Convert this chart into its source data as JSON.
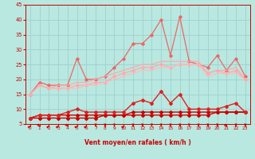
{
  "x": [
    0,
    1,
    2,
    3,
    4,
    5,
    6,
    7,
    8,
    9,
    10,
    11,
    12,
    13,
    14,
    15,
    16,
    17,
    18,
    19,
    20,
    21,
    22,
    23
  ],
  "series": [
    {
      "name": "line1_dark_bottom",
      "y": [
        7,
        7,
        7,
        7,
        7,
        7,
        7,
        7,
        8,
        8,
        8,
        8,
        8,
        8,
        8,
        8,
        8,
        8,
        8,
        8,
        9,
        9,
        9,
        9
      ],
      "color": "#cc0000",
      "lw": 1.0,
      "marker": "D",
      "ms": 2.0
    },
    {
      "name": "line2_dark_bottom2",
      "y": [
        7,
        8,
        8,
        8,
        8,
        8,
        8,
        8,
        8,
        8,
        8,
        9,
        9,
        9,
        9,
        9,
        9,
        9,
        9,
        9,
        9,
        9,
        9,
        9
      ],
      "color": "#cc0000",
      "lw": 1.0,
      "marker": "D",
      "ms": 2.0
    },
    {
      "name": "line3_medium_red",
      "y": [
        7,
        8,
        8,
        8,
        9,
        10,
        9,
        9,
        9,
        9,
        9,
        12,
        13,
        12,
        16,
        12,
        15,
        10,
        10,
        10,
        10,
        11,
        12,
        9
      ],
      "color": "#dd2222",
      "lw": 1.0,
      "marker": "D",
      "ms": 2.0
    },
    {
      "name": "line4_pink_volatile",
      "y": [
        15,
        19,
        18,
        18,
        18,
        27,
        20,
        20,
        21,
        24,
        27,
        32,
        32,
        35,
        40,
        28,
        41,
        26,
        25,
        24,
        28,
        23,
        27,
        21
      ],
      "color": "#ee6666",
      "lw": 0.9,
      "marker": "D",
      "ms": 1.8
    },
    {
      "name": "line5_light_pink_smooth1",
      "y": [
        15,
        18,
        17,
        17,
        17,
        18,
        18,
        19,
        19,
        21,
        22,
        23,
        24,
        24,
        25,
        24,
        25,
        25,
        25,
        22,
        23,
        22,
        23,
        20
      ],
      "color": "#ffaaaa",
      "lw": 0.9,
      "marker": "D",
      "ms": 1.8
    },
    {
      "name": "line6_light_pink_smooth2",
      "y": [
        15,
        18,
        17,
        17,
        17,
        17,
        18,
        18,
        19,
        20,
        21,
        22,
        23,
        23,
        24,
        24,
        25,
        25,
        25,
        21,
        22,
        22,
        22,
        20
      ],
      "color": "#ffbbbb",
      "lw": 0.9,
      "marker": null,
      "ms": 0
    },
    {
      "name": "line7_light_pink_smooth3",
      "y": [
        15,
        18,
        17,
        18,
        18,
        19,
        19,
        20,
        21,
        22,
        23,
        24,
        25,
        25,
        26,
        26,
        26,
        26,
        26,
        22,
        23,
        23,
        24,
        20
      ],
      "color": "#ffaaaa",
      "lw": 0.9,
      "marker": null,
      "ms": 0
    }
  ],
  "xlim": [
    -0.5,
    23.5
  ],
  "ylim": [
    5,
    45
  ],
  "yticks": [
    5,
    10,
    15,
    20,
    25,
    30,
    35,
    40,
    45
  ],
  "xticks": [
    0,
    1,
    2,
    3,
    4,
    5,
    6,
    7,
    8,
    9,
    10,
    11,
    12,
    13,
    14,
    15,
    16,
    17,
    18,
    19,
    20,
    21,
    22,
    23
  ],
  "xlabel": "Vent moyen/en rafales ( km/h )",
  "bg_color": "#b8e8e0",
  "grid_color": "#a0d0d0",
  "axis_color": "#cc0000",
  "tick_color": "#cc0000",
  "label_color": "#cc0000",
  "arrow_angles": [
    45,
    315,
    45,
    45,
    315,
    45,
    45,
    270,
    270,
    270,
    45,
    270,
    270,
    270,
    270,
    270,
    270,
    270,
    270,
    270,
    270,
    315,
    270,
    270
  ]
}
